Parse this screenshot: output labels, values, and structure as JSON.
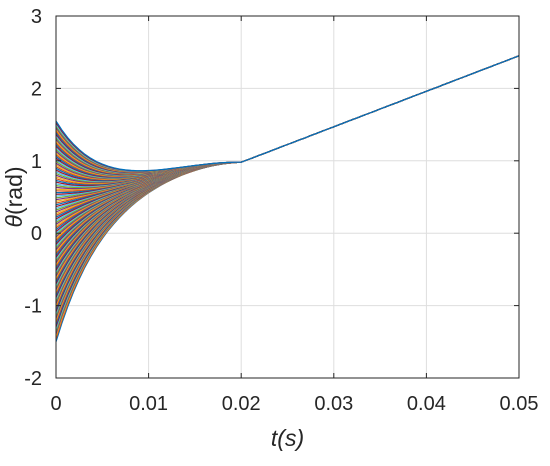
{
  "chart_data": {
    "type": "line",
    "title": "",
    "xlabel": "t(s)",
    "ylabel_symbol": "θ",
    "ylabel_unit": "(rad)",
    "xlim": [
      0,
      0.05
    ],
    "ylim": [
      -2,
      3
    ],
    "x_ticks": [
      0,
      0.01,
      0.02,
      0.03,
      0.04,
      0.05
    ],
    "x_tick_labels": [
      "0",
      "0.01",
      "0.02",
      "0.03",
      "0.04",
      "0.05"
    ],
    "y_ticks": [
      -2,
      -1,
      0,
      1,
      2,
      3
    ],
    "y_tick_labels": [
      "-2",
      "-1",
      "0",
      "1",
      "2",
      "3"
    ],
    "grid": true,
    "legend": false,
    "trajectory_family": {
      "count": 120,
      "x_start": 0,
      "x_end": 0.05,
      "initial_theta_min": -1.5,
      "initial_theta_max": 1.55,
      "converges_to": {
        "x": 0.02,
        "y": 0.98
      },
      "final_value": {
        "x": 0.05,
        "y": 2.45
      },
      "convergence_time": 0.02
    },
    "colors": {
      "axis": "#262626",
      "grid": "#dedede",
      "series_palette": [
        "#0072BD",
        "#D95319",
        "#EDB120",
        "#7E2F8E",
        "#77AC30",
        "#4DBEEE",
        "#A2142F"
      ]
    }
  }
}
